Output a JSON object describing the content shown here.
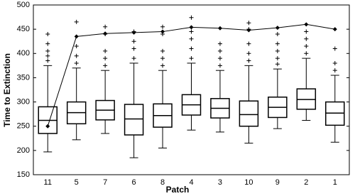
{
  "chart_data": {
    "type": "box",
    "xlabel": "Patch",
    "ylabel": "Time to Extinction",
    "categories": [
      "11",
      "5",
      "7",
      "6",
      "8",
      "4",
      "3",
      "10",
      "9",
      "2",
      "1"
    ],
    "boxes": [
      {
        "low": 197,
        "q1": 235,
        "median": 262,
        "q3": 290,
        "high": 375,
        "outliers": [
          385,
          395,
          405,
          420,
          440
        ]
      },
      {
        "low": 222,
        "q1": 255,
        "median": 278,
        "q3": 300,
        "high": 370,
        "outliers": [
          380,
          395,
          415,
          465
        ]
      },
      {
        "low": 235,
        "q1": 263,
        "median": 283,
        "q3": 303,
        "high": 365,
        "outliers": [
          375,
          390,
          405,
          440,
          455
        ]
      },
      {
        "low": 185,
        "q1": 232,
        "median": 265,
        "q3": 295,
        "high": 380,
        "outliers": [
          390,
          410,
          425,
          445
        ]
      },
      {
        "low": 205,
        "q1": 248,
        "median": 272,
        "q3": 296,
        "high": 365,
        "outliers": [
          375,
          390,
          405,
          440,
          455
        ]
      },
      {
        "low": 242,
        "q1": 273,
        "median": 294,
        "q3": 315,
        "high": 380,
        "outliers": [
          390,
          410,
          430,
          445,
          474
        ]
      },
      {
        "low": 238,
        "q1": 267,
        "median": 287,
        "q3": 307,
        "high": 365,
        "outliers": [
          375,
          390,
          405,
          420
        ]
      },
      {
        "low": 215,
        "q1": 250,
        "median": 274,
        "q3": 302,
        "high": 375,
        "outliers": [
          385,
          400,
          420,
          450,
          463
        ]
      },
      {
        "low": 245,
        "q1": 268,
        "median": 289,
        "q3": 310,
        "high": 368,
        "outliers": [
          378,
          390,
          405,
          420,
          440
        ]
      },
      {
        "low": 262,
        "q1": 285,
        "median": 305,
        "q3": 327,
        "high": 390,
        "outliers": [
          400,
          415,
          430,
          445
        ]
      },
      {
        "low": 217,
        "q1": 252,
        "median": 277,
        "q3": 300,
        "high": 355,
        "outliers": [
          365,
          380,
          410
        ]
      }
    ],
    "box_color": "#000000",
    "line": {
      "color": "#000000",
      "values": [
        250,
        435,
        441,
        443,
        445,
        454,
        452,
        448,
        453,
        460,
        450
      ]
    },
    "ylim": [
      150,
      500
    ],
    "yticks": [
      150,
      200,
      250,
      300,
      350,
      400,
      450,
      500
    ]
  }
}
